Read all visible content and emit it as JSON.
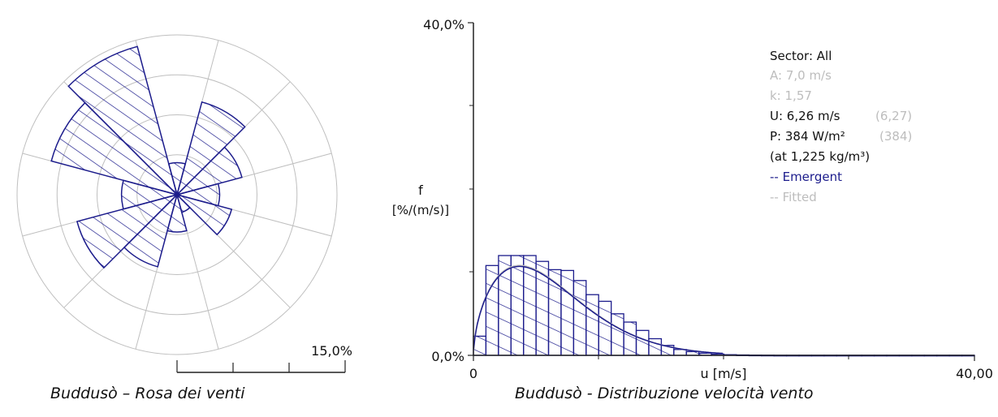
{
  "colors": {
    "bars": "#1c1c8c",
    "grid": "#bfbfbf",
    "axis": "#222222",
    "muted": "#bdbdbd",
    "text": "#111111"
  },
  "captions": {
    "rose": "Buddusò – Rosa dei venti",
    "distribution": "Buddusò - Distribuzione velocità vento"
  },
  "chart_data": [
    {
      "type": "polar-bar",
      "title": "",
      "sectors": 12,
      "sector_labels": [],
      "values_pct": [
        3.0,
        9.0,
        6.3,
        4.0,
        5.3,
        1.7,
        3.5,
        7.0,
        9.7,
        5.2,
        12.2,
        14.4
      ],
      "scale_label": "15,0%",
      "scale_max_pct": 15.0,
      "grid_rings": 4
    },
    {
      "type": "bar",
      "title": "",
      "xlabel": "u [m/s]",
      "ylabel_line1": "f",
      "ylabel_line2": "[%/(m/s)]",
      "xlim": [
        0,
        40
      ],
      "ylim": [
        0,
        40
      ],
      "x_tick_labels": [
        "0",
        "40,00"
      ],
      "y_tick_labels": [
        "0,0%",
        "40,0%"
      ],
      "bin_width_ms": 1,
      "frequencies_pct": [
        2.3,
        10.8,
        12.0,
        12.0,
        12.0,
        11.3,
        10.3,
        10.2,
        9.0,
        7.3,
        6.5,
        5.0,
        4.0,
        3.0,
        2.0,
        1.2,
        0.7,
        0.45,
        0.25,
        0.15,
        0.08,
        0.05,
        0.03,
        0.02,
        0.01,
        0.01,
        0.01,
        0.01,
        0.01,
        0.01,
        0.01,
        0.01,
        0.01,
        0.01,
        0.01,
        0.01,
        0.01,
        0.01,
        0.01,
        0.01
      ],
      "weibull": {
        "A": 7.0,
        "k": 1.57
      },
      "stats": {
        "sector": "Sector: All",
        "A": "A: 7,0 m/s",
        "k": "k: 1,57",
        "U": "U: 6,26 m/s",
        "U_fitted": "(6,27)",
        "P": "P: 384 W/m²",
        "P_fitted": "(384)",
        "density": "(at 1,225 kg/m³)",
        "legend_emergent": "-- Emergent",
        "legend_fitted": "-- Fitted"
      }
    }
  ]
}
